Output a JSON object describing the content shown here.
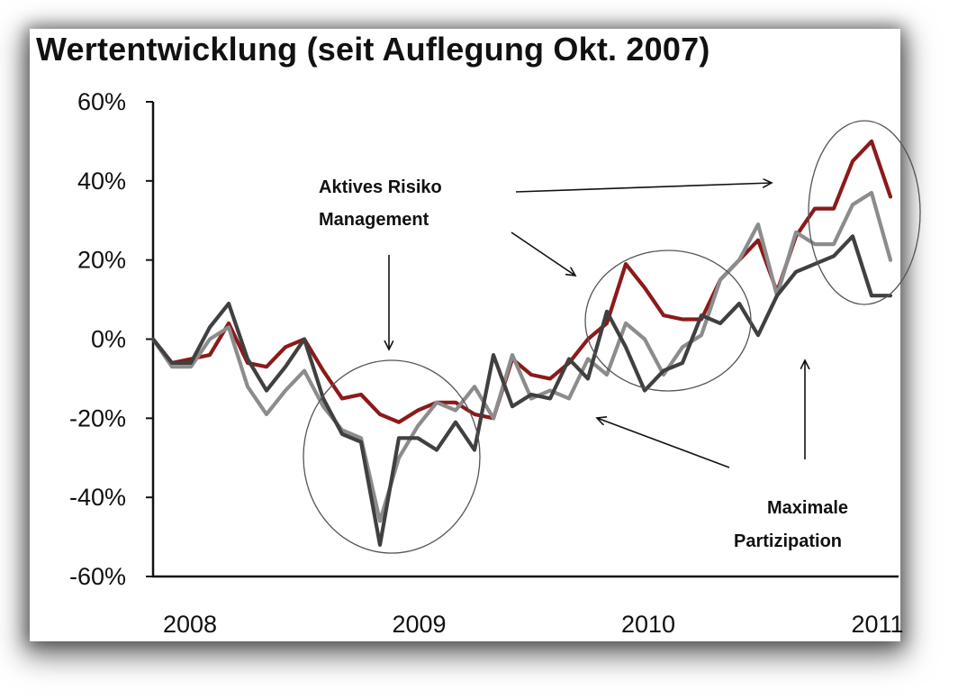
{
  "title": "Wertentwicklung (seit Auflegung Okt. 2007)",
  "chart_data": {
    "type": "line",
    "title": "Wertentwicklung (seit Auflegung Okt. 2007)",
    "xlabel": "",
    "ylabel": "",
    "ylim": [
      -60,
      60
    ],
    "y_ticks": [
      "60%",
      "40%",
      "20%",
      "0%",
      "-20%",
      "-40%",
      "-60%"
    ],
    "x_ticks": [
      "2008",
      "2009",
      "2010",
      "2011"
    ],
    "x_start": "2007-10",
    "x_frequency": "monthly",
    "grid": false,
    "legend": "none",
    "series": [
      {
        "color": "#8b1a1a",
        "values": [
          0,
          -6,
          -5,
          -4,
          4,
          -6,
          -7,
          -2,
          0,
          -8,
          -15,
          -14,
          -19,
          -21,
          -18,
          -16,
          -16,
          -19,
          -20,
          -5,
          -9,
          -10,
          -6,
          0,
          4,
          19,
          13,
          6,
          5,
          5,
          15,
          20,
          25,
          12,
          26,
          33,
          33,
          45,
          50,
          36
        ]
      },
      {
        "color": "#8c8c8c",
        "values": [
          0,
          -7,
          -7,
          0,
          3,
          -12,
          -19,
          -13,
          -8,
          -17,
          -23,
          -25,
          -46,
          -30,
          -22,
          -16,
          -18,
          -12,
          -20,
          -4,
          -15,
          -13,
          -15,
          -5,
          -9,
          4,
          0,
          -9,
          -2,
          1,
          15,
          20,
          29,
          11,
          27,
          24,
          24,
          34,
          37,
          20
        ]
      },
      {
        "color": "#404040",
        "values": [
          0,
          -6,
          -6,
          3,
          9,
          -5,
          -13,
          -7,
          0,
          -15,
          -24,
          -26,
          -52,
          -25,
          -25,
          -28,
          -21,
          -28,
          -4,
          -17,
          -14,
          -15,
          -5,
          -10,
          7,
          -2,
          -13,
          -8,
          -6,
          6,
          4,
          9,
          1,
          11,
          17,
          19,
          21,
          26,
          11,
          11
        ]
      }
    ]
  },
  "annotations": {
    "aktives_line1": "Aktives Risiko",
    "aktives_line2": "Management",
    "maximale_line1": "Maximale",
    "maximale_line2": "Partizipation"
  }
}
